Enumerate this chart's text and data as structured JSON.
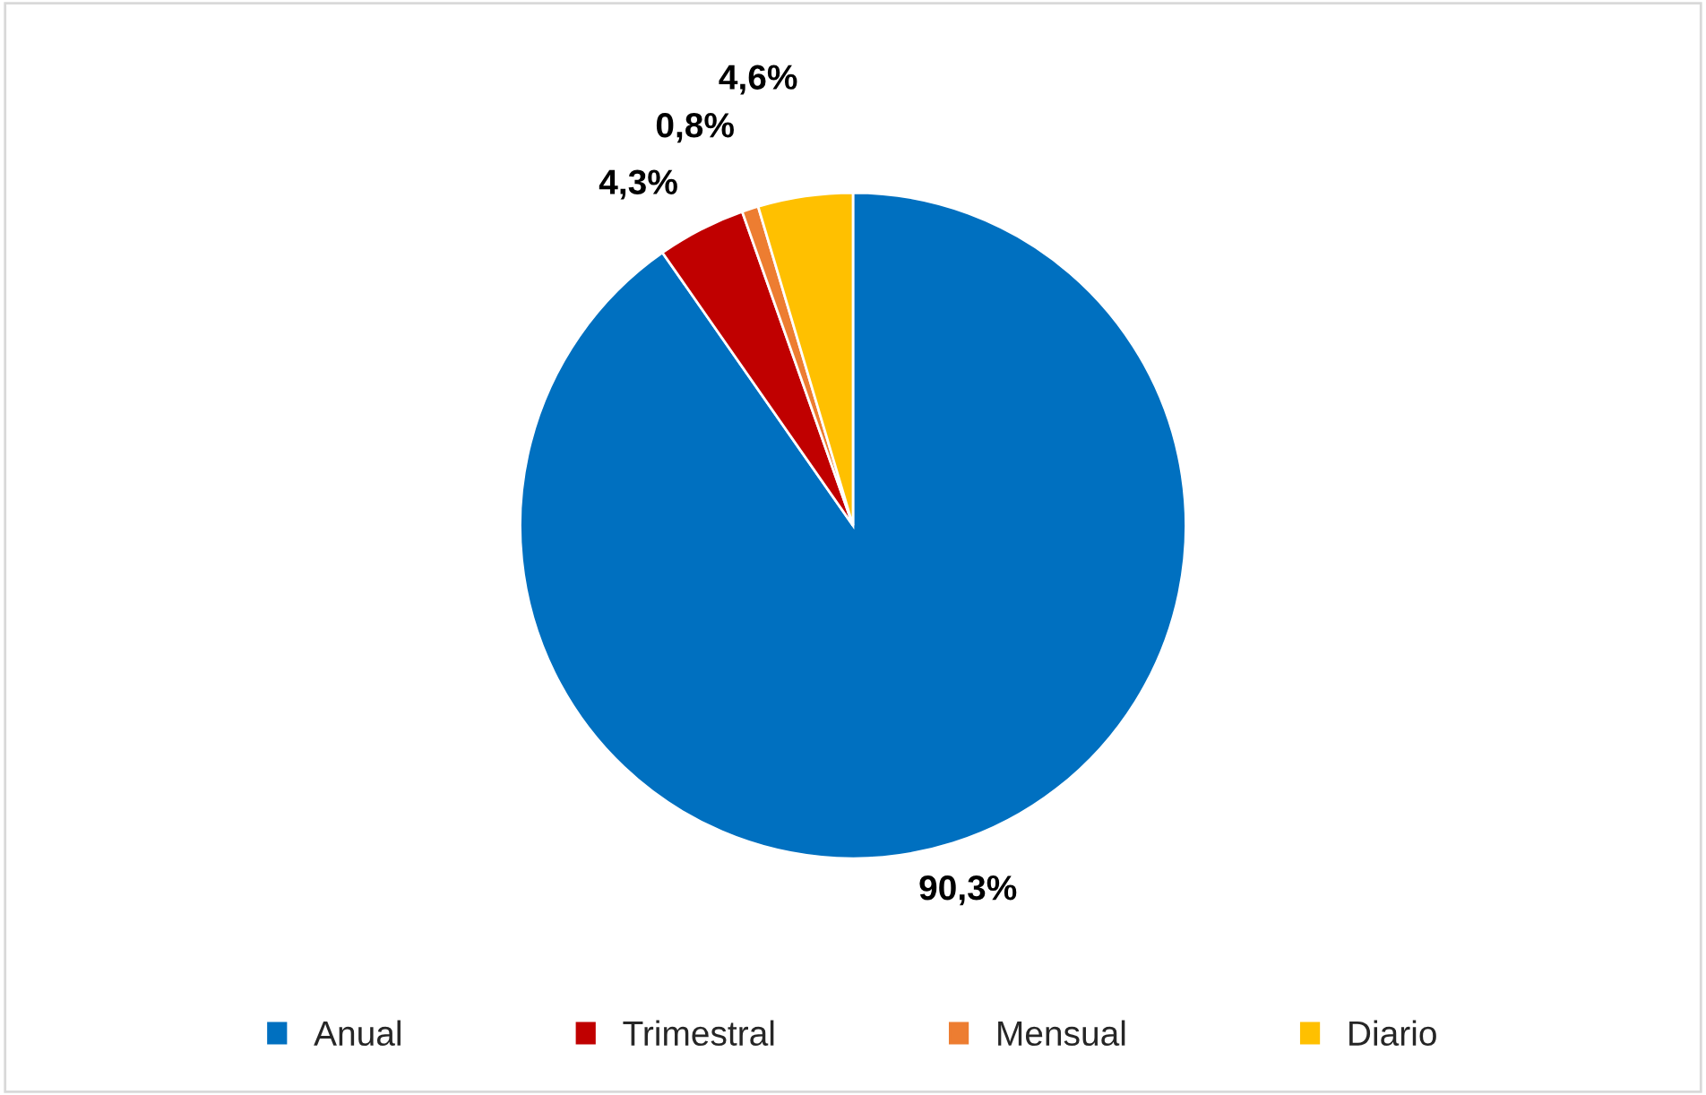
{
  "chart_data": {
    "type": "pie",
    "categories": [
      "Anual",
      "Trimestral",
      "Mensual",
      "Diario"
    ],
    "values": [
      90.3,
      4.3,
      0.8,
      4.6
    ],
    "colors": [
      "#0070c0",
      "#c00000",
      "#ed7d31",
      "#ffc000"
    ],
    "value_labels": [
      "90,3%",
      "4,3%",
      "0,8%",
      "4,6%"
    ],
    "legend": "bottom"
  }
}
